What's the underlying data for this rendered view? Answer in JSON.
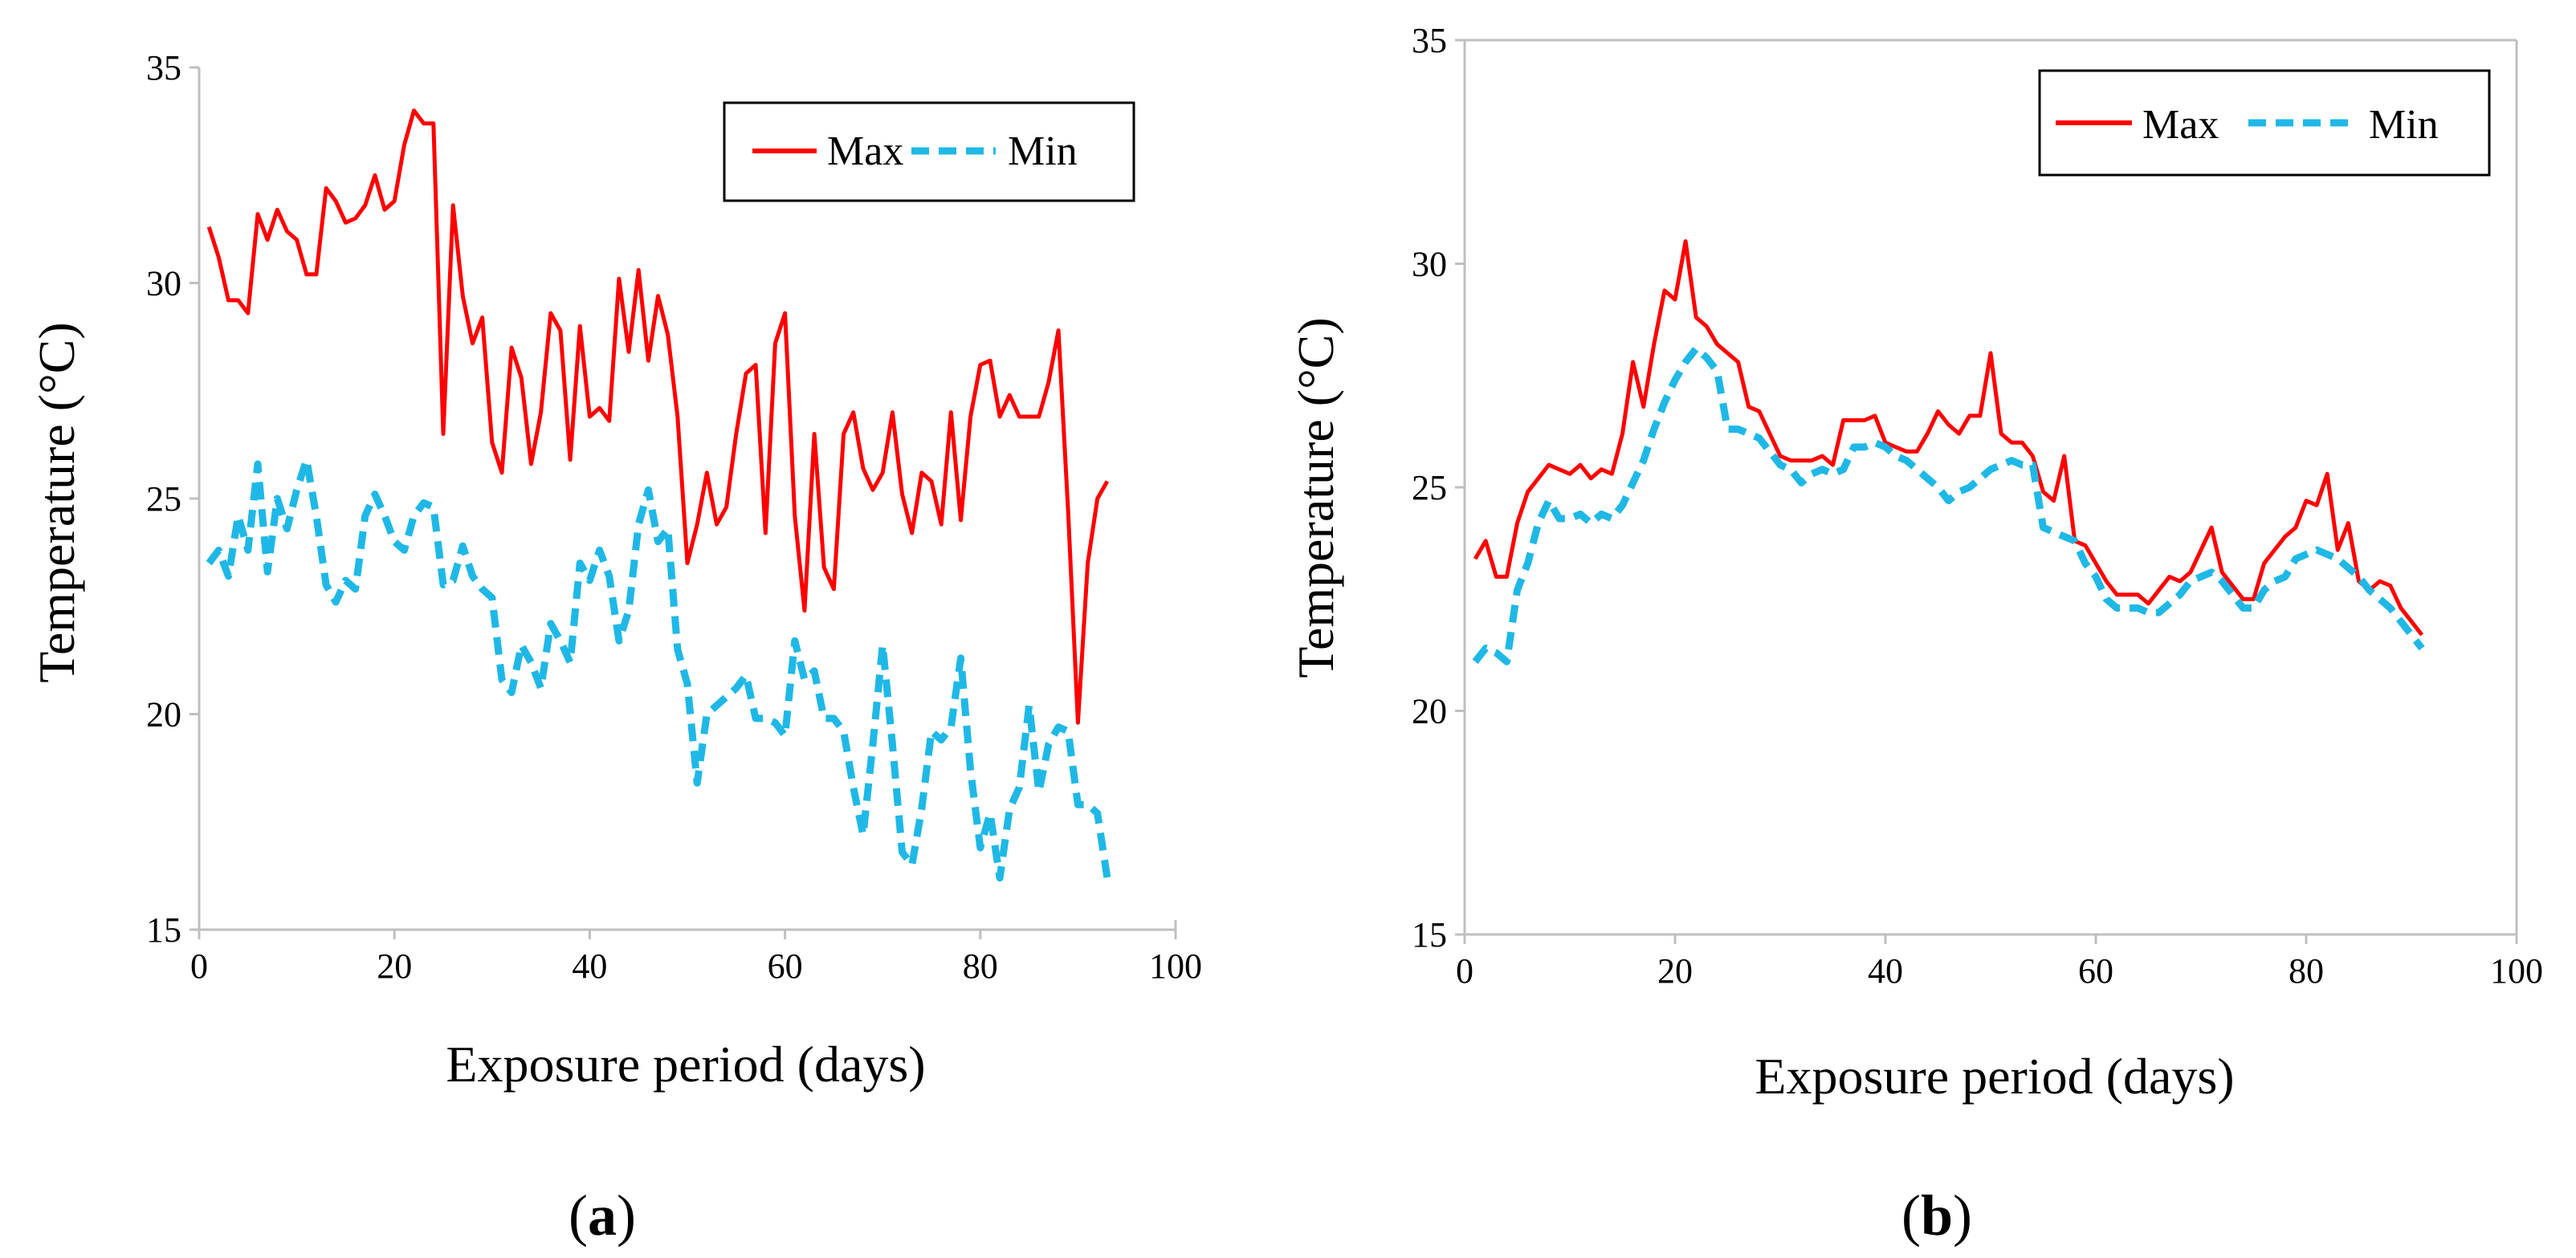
{
  "chart_data": [
    {
      "type": "line",
      "panel": "a",
      "xlabel": "Exposure period (days)",
      "ylabel": "Temperature (°C)",
      "xlim": [
        0,
        100
      ],
      "ylim": [
        15,
        35
      ],
      "xticks": [
        0,
        20,
        40,
        60,
        80,
        100
      ],
      "yticks": [
        15,
        20,
        25,
        30,
        35
      ],
      "legend_position": "top-right",
      "legend_border": true,
      "grid": false,
      "series": [
        {
          "name": "Max",
          "color": "#ff0000",
          "dash": "solid",
          "x": [
            1,
            2,
            3,
            4,
            5,
            6,
            7,
            8,
            9,
            10,
            11,
            12,
            13,
            14,
            15,
            16,
            17,
            18,
            19,
            20,
            21,
            22,
            23,
            24,
            25,
            26,
            27,
            28,
            29,
            30,
            31,
            32,
            33,
            34,
            35,
            36,
            37,
            38,
            39,
            40,
            41,
            42,
            43,
            44,
            45,
            46,
            47,
            48,
            49,
            50,
            51,
            52,
            53,
            54,
            55,
            56,
            57,
            58,
            59,
            60,
            61,
            62,
            63,
            64,
            65,
            66,
            67,
            68,
            69,
            70,
            71,
            72,
            73,
            74,
            75,
            76,
            77,
            78,
            79,
            80,
            81,
            82,
            83,
            84,
            85,
            86,
            87,
            88,
            89,
            90,
            91,
            92,
            93
          ],
          "values": [
            31.3,
            30.6,
            29.6,
            29.6,
            29.3,
            31.6,
            31.0,
            31.7,
            31.2,
            31.0,
            30.2,
            30.2,
            32.2,
            31.9,
            31.4,
            31.5,
            31.8,
            32.5,
            31.7,
            31.9,
            33.2,
            34.0,
            33.7,
            33.7,
            26.5,
            31.8,
            29.7,
            28.6,
            29.2,
            26.3,
            25.6,
            28.5,
            27.8,
            25.8,
            27.0,
            29.3,
            28.9,
            25.9,
            29.0,
            26.9,
            27.1,
            26.8,
            30.1,
            28.4,
            30.3,
            28.2,
            29.7,
            28.8,
            26.9,
            23.5,
            24.4,
            25.6,
            24.4,
            24.8,
            26.5,
            27.9,
            28.1,
            24.2,
            28.6,
            29.3,
            24.6,
            22.4,
            26.5,
            23.4,
            22.9,
            26.5,
            27.0,
            25.7,
            25.2,
            25.6,
            27.0,
            25.1,
            24.2,
            25.6,
            25.4,
            24.4,
            27.0,
            24.5,
            26.9,
            28.1,
            28.2,
            26.9,
            27.4,
            26.9,
            26.9,
            26.9,
            27.7,
            28.9,
            24.7,
            19.8,
            23.5,
            25.0,
            25.4
          ]
        },
        {
          "name": "Min",
          "color": "#1fb8e6",
          "dash": "dashed",
          "x": [
            1,
            2,
            3,
            4,
            5,
            6,
            7,
            8,
            9,
            10,
            11,
            12,
            13,
            14,
            15,
            16,
            17,
            18,
            19,
            20,
            21,
            22,
            23,
            24,
            25,
            26,
            27,
            28,
            29,
            30,
            31,
            32,
            33,
            34,
            35,
            36,
            37,
            38,
            39,
            40,
            41,
            42,
            43,
            44,
            45,
            46,
            47,
            48,
            49,
            50,
            51,
            52,
            53,
            54,
            55,
            56,
            57,
            58,
            59,
            60,
            61,
            62,
            63,
            64,
            65,
            66,
            67,
            68,
            69,
            70,
            71,
            72,
            73,
            74,
            75,
            76,
            77,
            78,
            79,
            80,
            81,
            82,
            83,
            84,
            85,
            86,
            87,
            88,
            89,
            90,
            91,
            92,
            93
          ],
          "values": [
            23.5,
            23.8,
            23.2,
            24.6,
            23.8,
            25.8,
            23.3,
            25.0,
            24.3,
            25.2,
            25.9,
            24.6,
            23.0,
            22.6,
            23.1,
            22.9,
            24.6,
            25.1,
            24.6,
            24.0,
            23.8,
            24.6,
            24.9,
            24.8,
            23.0,
            23.1,
            23.9,
            23.2,
            22.9,
            22.7,
            20.8,
            20.5,
            21.6,
            21.2,
            20.6,
            22.1,
            21.7,
            21.2,
            23.5,
            23.1,
            23.8,
            23.2,
            21.7,
            22.4,
            24.4,
            25.2,
            24.0,
            24.3,
            21.5,
            20.7,
            18.4,
            20.0,
            20.2,
            20.4,
            20.6,
            20.9,
            19.9,
            19.9,
            19.8,
            19.5,
            21.7,
            20.8,
            21.0,
            19.9,
            19.9,
            19.6,
            18.3,
            17.2,
            19.3,
            21.6,
            19.3,
            16.8,
            16.5,
            17.8,
            19.6,
            19.4,
            19.7,
            21.3,
            18.7,
            16.9,
            17.7,
            16.2,
            17.8,
            18.3,
            20.2,
            18.2,
            19.3,
            19.7,
            19.6,
            17.9,
            17.9,
            17.7,
            16.2
          ]
        }
      ]
    },
    {
      "type": "line",
      "panel": "b",
      "xlabel": "Exposure period (days)",
      "ylabel": "Temperature (°C)",
      "xlim": [
        0,
        100
      ],
      "ylim": [
        15,
        35
      ],
      "xticks": [
        0,
        20,
        40,
        60,
        80,
        100
      ],
      "yticks": [
        15,
        20,
        25,
        30,
        35
      ],
      "legend_position": "top-right",
      "legend_border": true,
      "grid": false,
      "series": [
        {
          "name": "Max",
          "color": "#ff0000",
          "dash": "solid",
          "x": [
            1,
            2,
            3,
            4,
            5,
            6,
            7,
            8,
            9,
            10,
            11,
            12,
            13,
            14,
            15,
            16,
            17,
            18,
            19,
            20,
            21,
            22,
            23,
            24,
            25,
            26,
            27,
            28,
            29,
            30,
            31,
            32,
            33,
            34,
            35,
            36,
            37,
            38,
            39,
            40,
            41,
            42,
            43,
            44,
            45,
            46,
            47,
            48,
            49,
            50,
            51,
            52,
            53,
            54,
            55,
            56,
            57,
            58,
            59,
            60,
            61,
            62,
            63,
            64,
            65,
            66,
            67,
            68,
            69,
            70,
            71,
            72,
            73,
            74,
            75,
            76,
            77,
            78,
            79,
            80,
            81,
            82,
            83,
            84,
            85,
            86,
            87,
            88,
            89,
            90,
            91
          ],
          "values": [
            23.4,
            23.8,
            23.0,
            23.0,
            24.2,
            24.9,
            25.2,
            25.5,
            25.4,
            25.3,
            25.5,
            25.2,
            25.4,
            25.3,
            26.2,
            27.8,
            26.8,
            28.2,
            29.4,
            29.2,
            30.5,
            28.8,
            28.6,
            28.2,
            28.0,
            27.8,
            26.8,
            26.7,
            26.2,
            25.7,
            25.6,
            25.6,
            25.6,
            25.7,
            25.5,
            26.5,
            26.5,
            26.5,
            26.6,
            26.0,
            25.9,
            25.8,
            25.8,
            26.2,
            26.7,
            26.4,
            26.2,
            26.6,
            26.6,
            28.0,
            26.2,
            26.0,
            26.0,
            25.7,
            24.9,
            24.7,
            25.7,
            23.8,
            23.7,
            23.3,
            22.9,
            22.6,
            22.6,
            22.6,
            22.4,
            22.7,
            23.0,
            22.9,
            23.1,
            23.6,
            24.1,
            23.1,
            22.8,
            22.5,
            22.5,
            23.3,
            23.6,
            23.9,
            24.1,
            24.7,
            24.6,
            25.3,
            23.6,
            24.2,
            22.9,
            22.7,
            22.9,
            22.8,
            22.3,
            22.0,
            21.7
          ]
        },
        {
          "name": "Min",
          "color": "#1fb8e6",
          "dash": "dashed",
          "x": [
            1,
            2,
            3,
            4,
            5,
            6,
            7,
            8,
            9,
            10,
            11,
            12,
            13,
            14,
            15,
            16,
            17,
            18,
            19,
            20,
            21,
            22,
            23,
            24,
            25,
            26,
            27,
            28,
            29,
            30,
            31,
            32,
            33,
            34,
            35,
            36,
            37,
            38,
            39,
            40,
            41,
            42,
            43,
            44,
            45,
            46,
            47,
            48,
            49,
            50,
            51,
            52,
            53,
            54,
            55,
            56,
            57,
            58,
            59,
            60,
            61,
            62,
            63,
            64,
            65,
            66,
            67,
            68,
            69,
            70,
            71,
            72,
            73,
            74,
            75,
            76,
            77,
            78,
            79,
            80,
            81,
            82,
            83,
            84,
            85,
            86,
            87,
            88,
            89,
            90,
            91
          ],
          "values": [
            21.1,
            21.4,
            21.3,
            21.1,
            22.7,
            23.3,
            24.2,
            24.7,
            24.3,
            24.3,
            24.4,
            24.2,
            24.4,
            24.3,
            24.6,
            25.1,
            25.6,
            26.3,
            26.9,
            27.4,
            27.8,
            28.1,
            27.9,
            27.6,
            26.3,
            26.3,
            26.2,
            26.1,
            25.8,
            25.5,
            25.4,
            25.1,
            25.3,
            25.4,
            25.3,
            25.4,
            25.9,
            25.9,
            26.0,
            25.9,
            25.7,
            25.6,
            25.4,
            25.2,
            25.0,
            24.7,
            24.9,
            25.0,
            25.2,
            25.4,
            25.5,
            25.6,
            25.5,
            25.5,
            24.1,
            24.0,
            23.9,
            23.8,
            23.3,
            23.0,
            22.5,
            22.3,
            22.3,
            22.3,
            22.2,
            22.2,
            22.4,
            22.6,
            22.9,
            23.0,
            23.1,
            22.9,
            22.6,
            22.3,
            22.3,
            22.7,
            22.9,
            23.0,
            23.4,
            23.5,
            23.6,
            23.5,
            23.4,
            23.2,
            23.0,
            22.7,
            22.5,
            22.3,
            22.0,
            21.7,
            21.4
          ]
        }
      ]
    }
  ],
  "panel_labels": [
    "(a)",
    "(b)"
  ]
}
